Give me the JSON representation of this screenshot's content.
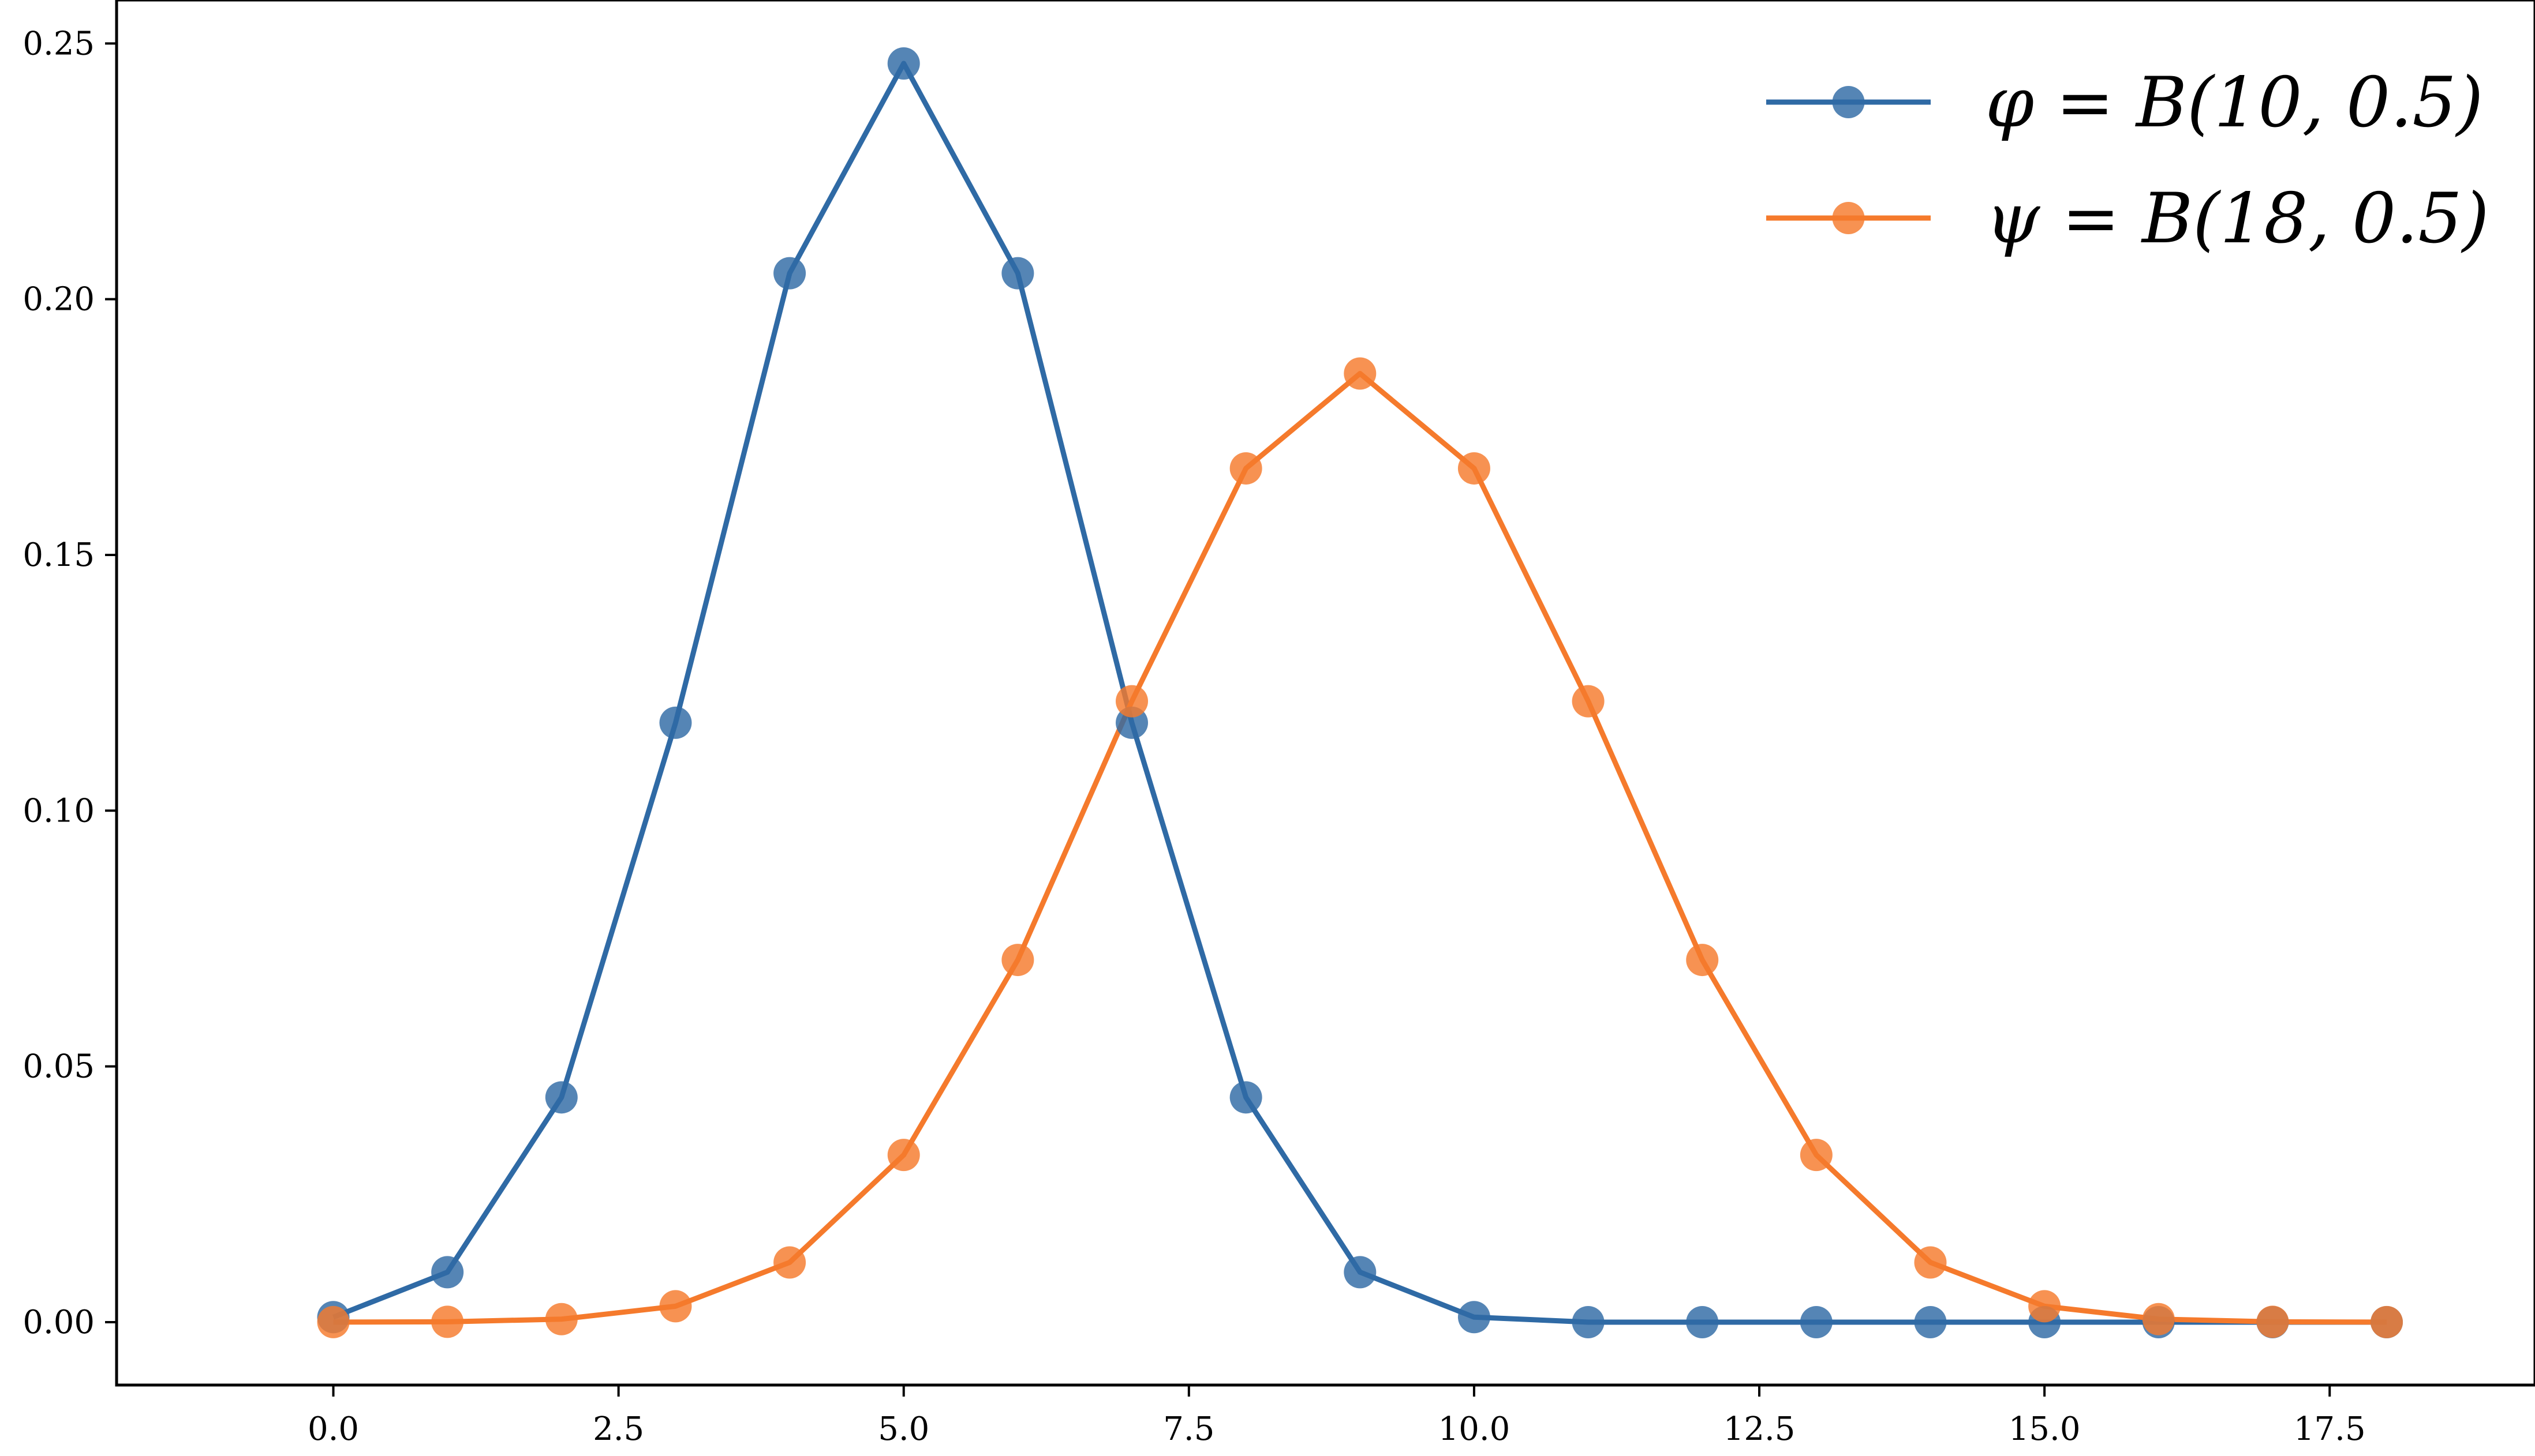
{
  "chart_data": {
    "type": "line",
    "title": "",
    "xlabel": "",
    "ylabel": "",
    "x": [
      0,
      1,
      2,
      3,
      4,
      5,
      6,
      7,
      8,
      9,
      10,
      11,
      12,
      13,
      14,
      15,
      16,
      17,
      18
    ],
    "xlim": [
      -1.9,
      19.3
    ],
    "ylim": [
      -0.0123,
      0.2585
    ],
    "xticks": [
      "0.0",
      "2.5",
      "5.0",
      "7.5",
      "10.0",
      "12.5",
      "15.0",
      "17.5"
    ],
    "xtick_values": [
      0,
      2.5,
      5,
      7.5,
      10,
      12.5,
      15,
      17.5
    ],
    "yticks": [
      "0.00",
      "0.05",
      "0.10",
      "0.15",
      "0.20",
      "0.25"
    ],
    "ytick_values": [
      0,
      0.05,
      0.1,
      0.15,
      0.2,
      0.25
    ],
    "grid": false,
    "legend_position": "top-right",
    "series": [
      {
        "name": "φ = B(10, 0.5)",
        "color": "#2f6aa5",
        "marker": "circle",
        "values": [
          0.000977,
          0.009766,
          0.043945,
          0.117188,
          0.205078,
          0.246094,
          0.205078,
          0.117188,
          0.043945,
          0.009766,
          0.000977,
          0,
          0,
          0,
          0,
          0,
          0,
          0,
          0
        ]
      },
      {
        "name": "ψ = B(18, 0.5)",
        "color": "#f57a2c",
        "marker": "circle",
        "values": [
          3.8e-06,
          6.87e-05,
          0.000584,
          0.003113,
          0.011673,
          0.032684,
          0.070816,
          0.121399,
          0.166924,
          0.185471,
          0.166924,
          0.121399,
          0.070816,
          0.032684,
          0.011673,
          0.003113,
          0.000584,
          6.87e-05,
          3.8e-06
        ]
      }
    ]
  }
}
